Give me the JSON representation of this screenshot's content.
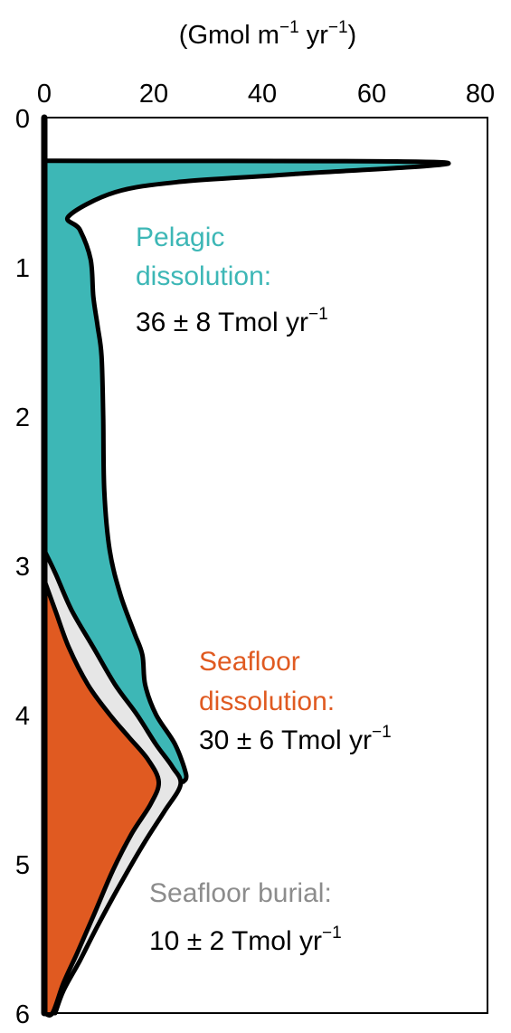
{
  "chart_data": {
    "type": "area",
    "axis_title": {
      "prefix": "(Gmol m",
      "exp1": "−1",
      "middle": " yr",
      "exp2": "−1",
      "suffix": ")"
    },
    "xlim": [
      0,
      80
    ],
    "ylim": [
      0,
      6
    ],
    "x_axis_position": "top",
    "y_inverted": true,
    "grid": false,
    "x_ticks": [
      "0",
      "20",
      "40",
      "60",
      "80"
    ],
    "y_ticks": [
      "0",
      "1",
      "2",
      "3",
      "4",
      "5",
      "6"
    ],
    "colors": {
      "pelagic": "#3db7b6",
      "seafloor_dissolution": "#e05a21",
      "seafloor_burial": "#e6e6e6",
      "outline": "#000000",
      "burial_label": "#8c8c8c"
    },
    "series": [
      {
        "name": "Seafloor dissolution",
        "key": "seafloor",
        "points": [
          [
            0,
            3.1
          ],
          [
            2,
            3.3
          ],
          [
            4.5,
            3.55
          ],
          [
            8,
            3.8
          ],
          [
            12,
            4.0
          ],
          [
            15.5,
            4.15
          ],
          [
            19,
            4.3
          ],
          [
            21,
            4.45
          ],
          [
            19.5,
            4.6
          ],
          [
            16,
            4.8
          ],
          [
            12.5,
            5.05
          ],
          [
            9,
            5.35
          ],
          [
            6,
            5.6
          ],
          [
            3.5,
            5.8
          ],
          [
            1.5,
            6.0
          ],
          [
            0,
            6.0
          ]
        ]
      },
      {
        "name": "Seafloor burial",
        "key": "burial",
        "points": [
          [
            0,
            2.9
          ],
          [
            2,
            3.05
          ],
          [
            5,
            3.3
          ],
          [
            9,
            3.55
          ],
          [
            13,
            3.8
          ],
          [
            17,
            4.0
          ],
          [
            20.5,
            4.2
          ],
          [
            23.5,
            4.35
          ],
          [
            25,
            4.47
          ],
          [
            22,
            4.65
          ],
          [
            18.5,
            4.85
          ],
          [
            14.5,
            5.1
          ],
          [
            10,
            5.4
          ],
          [
            6.5,
            5.65
          ],
          [
            3.5,
            5.85
          ],
          [
            2,
            6.0
          ]
        ]
      },
      {
        "name": "Pelagic dissolution",
        "key": "pelagic",
        "points": [
          [
            2,
            0.29
          ],
          [
            73,
            0.3
          ],
          [
            45,
            0.38
          ],
          [
            25,
            0.43
          ],
          [
            13,
            0.5
          ],
          [
            4.5,
            0.66
          ],
          [
            6.5,
            0.75
          ],
          [
            8.5,
            0.95
          ],
          [
            9,
            1.2
          ],
          [
            9.8,
            1.4
          ],
          [
            10.5,
            1.6
          ],
          [
            10.8,
            2.0
          ],
          [
            11,
            2.5
          ],
          [
            12,
            2.9
          ],
          [
            14,
            3.2
          ],
          [
            16.5,
            3.45
          ],
          [
            18,
            3.6
          ],
          [
            18.5,
            3.8
          ],
          [
            20.5,
            4.0
          ],
          [
            24,
            4.2
          ],
          [
            26,
            4.4
          ],
          [
            25.5,
            4.45
          ]
        ]
      }
    ],
    "annotations": {
      "pelagic_line1": "Pelagic",
      "pelagic_line2": "dissolution:",
      "pelagic_value": "36 ± 8 Tmol yr",
      "pelagic_exp": "−1",
      "seafloor_line1": "Seafloor",
      "seafloor_line2": "dissolution:",
      "seafloor_value": "30 ± 6 Tmol yr",
      "seafloor_exp": "−1",
      "burial_line1": "Seafloor burial:",
      "burial_value": "10 ± 2 Tmol yr",
      "burial_exp": "−1"
    }
  }
}
